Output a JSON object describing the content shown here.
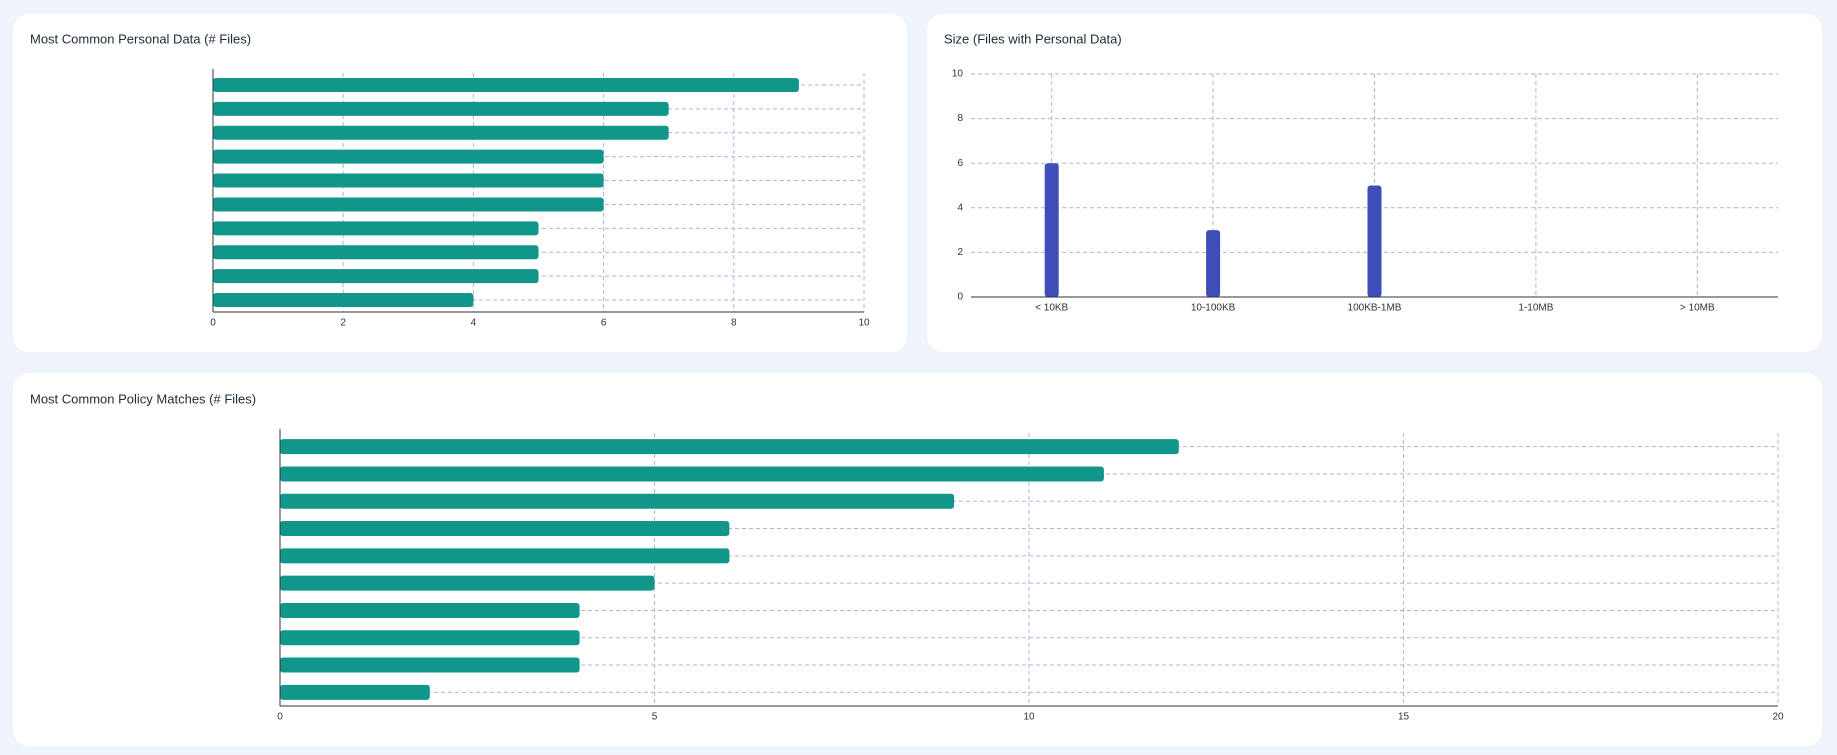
{
  "chart_data": [
    {
      "type": "barh",
      "title": "Most Common Personal Data (# Files)",
      "categories": [
        null,
        null,
        null,
        null,
        null,
        null,
        null,
        null,
        null,
        null
      ],
      "values": [
        9,
        7,
        7,
        6,
        6,
        6,
        5,
        5,
        5,
        4
      ],
      "color": "#10978a",
      "xlim": [
        0,
        10
      ],
      "xticks": [
        0,
        2,
        4,
        6,
        8,
        10
      ],
      "grid": true
    },
    {
      "type": "bar",
      "title": "Size (Files with Personal Data)",
      "categories": [
        "< 10KB",
        "10-100KB",
        "100KB-1MB",
        "1-10MB",
        "> 10MB"
      ],
      "values": [
        6,
        3,
        5,
        0,
        0
      ],
      "color": "#3f4db8",
      "ylim": [
        0,
        10
      ],
      "yticks": [
        0,
        2,
        4,
        6,
        8,
        10
      ],
      "grid": true
    },
    {
      "type": "barh",
      "title": "Most Common Policy Matches (# Files)",
      "categories": [
        null,
        null,
        null,
        null,
        null,
        null,
        null,
        null,
        null,
        null
      ],
      "values": [
        12,
        11,
        9,
        6,
        6,
        5,
        4,
        4,
        4,
        2
      ],
      "color": "#10978a",
      "xlim": [
        0,
        20
      ],
      "xticks": [
        0,
        5,
        10,
        15,
        20
      ],
      "grid": true
    }
  ]
}
